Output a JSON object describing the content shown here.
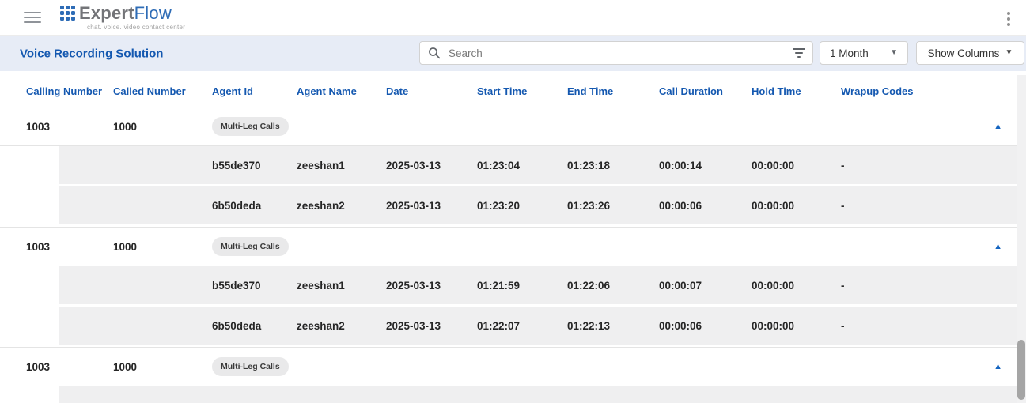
{
  "app_bar": {
    "logo": {
      "brand_bold": "Expert",
      "brand_light": "Flow",
      "tagline": "chat. voice. video contact center"
    }
  },
  "toolbar": {
    "title": "Voice Recording Solution",
    "search": {
      "placeholder": "Search",
      "value": ""
    },
    "period_select": {
      "value": "1 Month"
    },
    "show_columns": {
      "label": "Show Columns"
    }
  },
  "icons": {
    "menu": "hamburger",
    "more": "kebab ⋮",
    "search": "magnifier",
    "filter": "filter-list",
    "caret": "▾",
    "collapse": "▲"
  },
  "table": {
    "columns": [
      "Calling Number",
      "Called Number",
      "Agent Id",
      "Agent Name",
      "Date",
      "Start Time",
      "End Time",
      "Call Duration",
      "Hold Time",
      "Wrapup Codes"
    ],
    "groups": [
      {
        "calling_number": "1003",
        "called_number": "1000",
        "badge": "Multi-Leg Calls",
        "expanded": true,
        "legs": [
          {
            "agent_id": "b55de370",
            "agent_name": "zeeshan1",
            "date": "2025-03-13",
            "start_time": "01:23:04",
            "end_time": "01:23:18",
            "call_duration": "00:00:14",
            "hold_time": "00:00:00",
            "wrapup_codes": "-"
          },
          {
            "agent_id": "6b50deda",
            "agent_name": "zeeshan2",
            "date": "2025-03-13",
            "start_time": "01:23:20",
            "end_time": "01:23:26",
            "call_duration": "00:00:06",
            "hold_time": "00:00:00",
            "wrapup_codes": "-"
          }
        ]
      },
      {
        "calling_number": "1003",
        "called_number": "1000",
        "badge": "Multi-Leg Calls",
        "expanded": true,
        "legs": [
          {
            "agent_id": "b55de370",
            "agent_name": "zeeshan1",
            "date": "2025-03-13",
            "start_time": "01:21:59",
            "end_time": "01:22:06",
            "call_duration": "00:00:07",
            "hold_time": "00:00:00",
            "wrapup_codes": "-"
          },
          {
            "agent_id": "6b50deda",
            "agent_name": "zeeshan2",
            "date": "2025-03-13",
            "start_time": "01:22:07",
            "end_time": "01:22:13",
            "call_duration": "00:00:06",
            "hold_time": "00:00:00",
            "wrapup_codes": "-"
          }
        ]
      },
      {
        "calling_number": "1003",
        "called_number": "1000",
        "badge": "Multi-Leg Calls",
        "expanded": true,
        "legs": []
      }
    ]
  },
  "colors": {
    "accent_blue": "#1458b0",
    "logo_blue": "#2e6cb6",
    "logo_gray": "#737478",
    "toolbar_bg": "#e7ecf6",
    "leg_row_bg": "#efeff0",
    "chip_bg": "#e9e9ea",
    "collapse_arrow": "#1565c0",
    "scroll_thumb": "#a5a5a5"
  }
}
